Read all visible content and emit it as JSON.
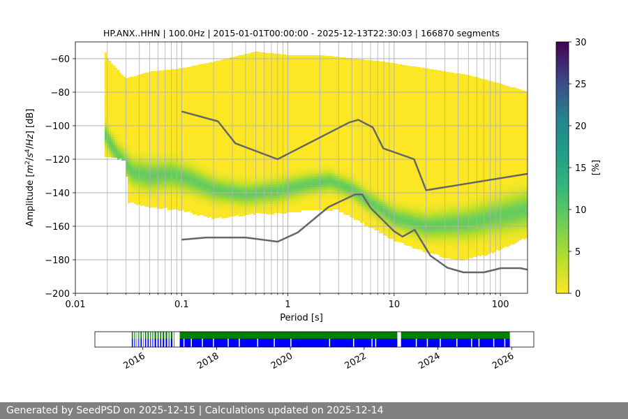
{
  "chart_data": [
    {
      "type": "heatmap",
      "title": "HP.ANX..HHN | 100.0Hz | 2015-01-01T00:00:00 - 2025-12-13T22:30:03 | 166870 segments",
      "xlabel": "Period [s]",
      "ylabel": "Amplitude [m²/s⁴/Hz] [dB]",
      "xscale": "log",
      "xlim": [
        0.01,
        180
      ],
      "ylim": [
        -200,
        -50
      ],
      "x_ticks": [
        0.01,
        0.1,
        1,
        10,
        100
      ],
      "x_tick_labels": [
        "0.01",
        "0.1",
        "1",
        "10",
        "100"
      ],
      "y_ticks": [
        -200,
        -180,
        -160,
        -140,
        -120,
        -100,
        -80,
        -60
      ],
      "y_tick_labels": [
        "−200",
        "−180",
        "−160",
        "−140",
        "−120",
        "−100",
        "−80",
        "−60"
      ],
      "grid": true,
      "colorbar": {
        "label": "[%]",
        "range": [
          0,
          30
        ],
        "ticks": [
          0,
          5,
          10,
          15,
          20,
          25,
          30
        ],
        "colormap": "viridis"
      },
      "psd_distribution": {
        "period_start": 0.019,
        "outer_upper": [
          {
            "x": 0.019,
            "y": -55
          },
          {
            "x": 0.02,
            "y": -60
          },
          {
            "x": 0.03,
            "y": -72
          },
          {
            "x": 0.05,
            "y": -68
          },
          {
            "x": 0.1,
            "y": -66
          },
          {
            "x": 0.2,
            "y": -62
          },
          {
            "x": 0.5,
            "y": -56
          },
          {
            "x": 1,
            "y": -58
          },
          {
            "x": 2,
            "y": -58
          },
          {
            "x": 4,
            "y": -60
          },
          {
            "x": 8,
            "y": -62
          },
          {
            "x": 20,
            "y": -66
          },
          {
            "x": 50,
            "y": -70
          },
          {
            "x": 100,
            "y": -75
          },
          {
            "x": 180,
            "y": -80
          }
        ],
        "outer_lower": [
          {
            "x": 0.019,
            "y": -118
          },
          {
            "x": 0.03,
            "y": -120
          },
          {
            "x": 0.031,
            "y": -145
          },
          {
            "x": 0.05,
            "y": -148
          },
          {
            "x": 0.1,
            "y": -150
          },
          {
            "x": 0.2,
            "y": -155
          },
          {
            "x": 0.5,
            "y": -152
          },
          {
            "x": 0.8,
            "y": -152
          },
          {
            "x": 1.5,
            "y": -150
          },
          {
            "x": 3,
            "y": -150
          },
          {
            "x": 6,
            "y": -160
          },
          {
            "x": 10,
            "y": -168
          },
          {
            "x": 20,
            "y": -175
          },
          {
            "x": 40,
            "y": -180
          },
          {
            "x": 80,
            "y": -176
          },
          {
            "x": 180,
            "y": -166
          }
        ],
        "mode": [
          {
            "x": 0.019,
            "y": -105
          },
          {
            "x": 0.025,
            "y": -118
          },
          {
            "x": 0.035,
            "y": -128
          },
          {
            "x": 0.05,
            "y": -130
          },
          {
            "x": 0.08,
            "y": -129
          },
          {
            "x": 0.12,
            "y": -132
          },
          {
            "x": 0.2,
            "y": -138
          },
          {
            "x": 0.4,
            "y": -141
          },
          {
            "x": 0.8,
            "y": -139
          },
          {
            "x": 1.5,
            "y": -135
          },
          {
            "x": 2.5,
            "y": -133
          },
          {
            "x": 4,
            "y": -138
          },
          {
            "x": 6,
            "y": -146
          },
          {
            "x": 10,
            "y": -155
          },
          {
            "x": 20,
            "y": -160
          },
          {
            "x": 50,
            "y": -158
          },
          {
            "x": 180,
            "y": -150
          }
        ],
        "mode_halfwidth": [
          {
            "x": 0.019,
            "y": 6
          },
          {
            "x": 0.05,
            "y": 8
          },
          {
            "x": 0.3,
            "y": 6
          },
          {
            "x": 1,
            "y": 6
          },
          {
            "x": 3,
            "y": 5
          },
          {
            "x": 10,
            "y": 6
          },
          {
            "x": 180,
            "y": 10
          }
        ]
      },
      "series": [
        {
          "values": [
            {
              "x": 0.1,
              "y": -91.5
            },
            {
              "x": 0.22,
              "y": -97.4
            },
            {
              "x": 0.32,
              "y": -110.5
            },
            {
              "x": 0.8,
              "y": -120.0
            },
            {
              "x": 3.8,
              "y": -98.0
            },
            {
              "x": 4.6,
              "y": -96.5
            },
            {
              "x": 6.3,
              "y": -101.0
            },
            {
              "x": 7.9,
              "y": -113.5
            },
            {
              "x": 15.4,
              "y": -120.0
            },
            {
              "x": 20.0,
              "y": -138.5
            },
            {
              "x": 180.0,
              "y": -128.7
            }
          ]
        },
        {
          "values": [
            {
              "x": 0.1,
              "y": -168.0
            },
            {
              "x": 0.17,
              "y": -166.7
            },
            {
              "x": 0.4,
              "y": -166.7
            },
            {
              "x": 0.8,
              "y": -169.2
            },
            {
              "x": 1.24,
              "y": -163.7
            },
            {
              "x": 2.4,
              "y": -148.6
            },
            {
              "x": 4.3,
              "y": -141.0
            },
            {
              "x": 5.0,
              "y": -141.0
            },
            {
              "x": 6.0,
              "y": -149.0
            },
            {
              "x": 10.0,
              "y": -163.0
            },
            {
              "x": 12.0,
              "y": -166.2
            },
            {
              "x": 15.6,
              "y": -162.1
            },
            {
              "x": 21.9,
              "y": -177.5
            },
            {
              "x": 31.6,
              "y": -184.7
            },
            {
              "x": 45.0,
              "y": -187.5
            },
            {
              "x": 70.0,
              "y": -187.5
            },
            {
              "x": 101.0,
              "y": -185.0
            },
            {
              "x": 154.0,
              "y": -185.0
            },
            {
              "x": 180.0,
              "y": -185.9
            }
          ]
        }
      ]
    },
    {
      "type": "bar",
      "x_tick_labels": [
        "2016",
        "2018",
        "2020",
        "2022",
        "2024",
        "2026"
      ],
      "x_ticks": [
        2016,
        2018,
        2020,
        2022,
        2024,
        2026
      ],
      "xlim": [
        2014.7,
        2026.6
      ],
      "colors": {
        "top": "#008000",
        "bottom": "#0000ff"
      },
      "coverage_start": 2015.7,
      "coverage_end": 2025.95,
      "gaps": [
        2015.73,
        2015.79,
        2015.84,
        2015.9,
        2015.97,
        2016.02,
        2016.09,
        2016.16,
        2016.22,
        2016.28,
        2016.36,
        2016.43,
        2016.5,
        2016.58,
        2016.66,
        2016.72,
        2016.8,
        2016.85
      ],
      "major_gaps": [
        {
          "from": 2016.88,
          "to": 2017.0
        },
        {
          "from": 2022.9,
          "to": 2023.0
        }
      ],
      "bottom_gaps": [
        2017.1,
        2017.3,
        2017.6,
        2017.9,
        2018.3,
        2018.6,
        2019.1,
        2019.55,
        2020.0,
        2021.05,
        2021.7,
        2022.2,
        2022.3,
        2023.4,
        2023.7,
        2024.05,
        2024.5,
        2024.9,
        2025.1,
        2025.5,
        2025.8
      ]
    }
  ],
  "footer": {
    "text": "Generated by SeedPSD on 2025-12-15 | Calculations updated on 2025-12-14"
  }
}
